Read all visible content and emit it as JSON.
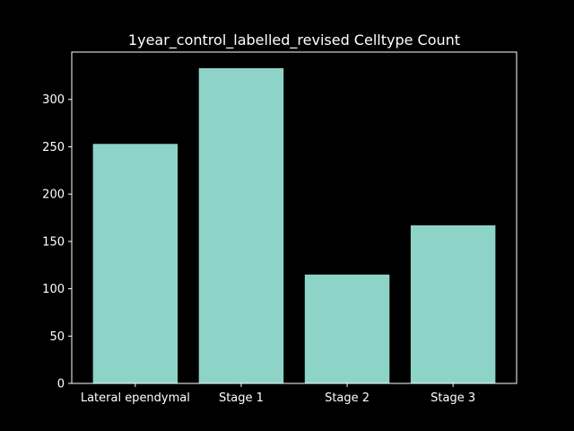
{
  "chart_data": {
    "type": "bar",
    "title": "1year_control_labelled_revised Celltype Count",
    "xlabel": "",
    "ylabel": "",
    "categories": [
      "Lateral ependymal",
      "Stage 1",
      "Stage 2",
      "Stage 3"
    ],
    "values": [
      253,
      333,
      115,
      167
    ],
    "ylim": [
      0,
      350
    ],
    "yticks": [
      0,
      50,
      100,
      150,
      200,
      250,
      300
    ],
    "grid": false,
    "legend": "none",
    "colors": {
      "background": "#000000",
      "bar": "#8dd3c7",
      "axis": "#ffffff",
      "text": "#ffffff"
    }
  }
}
